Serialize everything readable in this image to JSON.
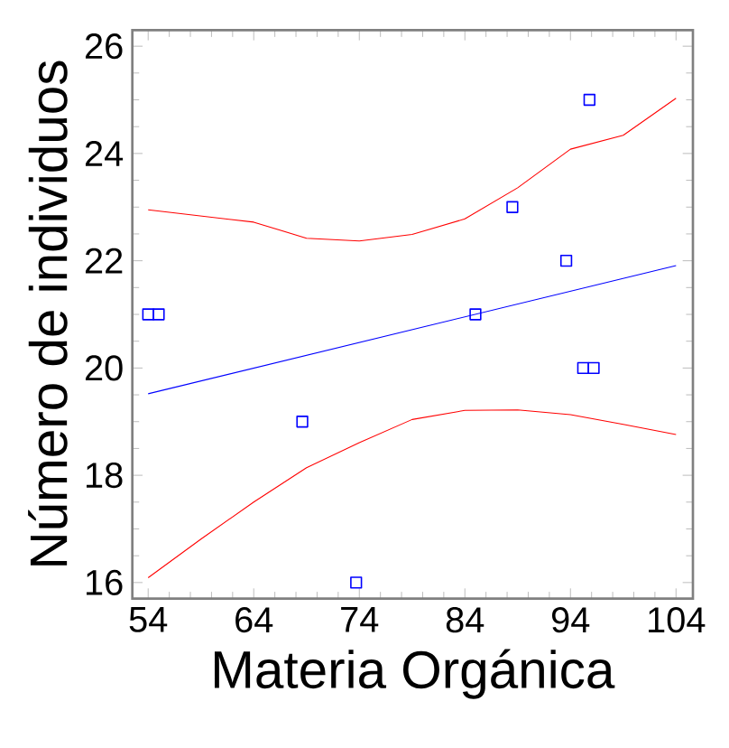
{
  "chart_data": {
    "type": "scatter",
    "xlabel": "Materia Orgánica",
    "ylabel": "Número de individuos",
    "xlim": [
      52.5,
      105.6
    ],
    "ylim": [
      15.7,
      26.3
    ],
    "xticks": [
      54,
      64,
      74,
      84,
      94,
      104
    ],
    "yticks": [
      16,
      18,
      20,
      22,
      24,
      26
    ],
    "series": [
      {
        "color": "#0000ff",
        "marker": "square",
        "x": [
          54,
          55,
          68.6,
          73.7,
          85,
          88.5,
          93.6,
          95.2,
          96.2,
          95.8
        ],
        "values": [
          21,
          21,
          19,
          16,
          21,
          23,
          22,
          20,
          20,
          25
        ]
      },
      {
        "type": "line",
        "color": "#0000ff",
        "marker": "none",
        "x": [
          54,
          104
        ],
        "values": [
          19.52,
          21.91
        ]
      },
      {
        "type": "line",
        "color": "#ff0000",
        "marker": "none",
        "x": [
          54,
          64,
          69,
          74,
          79,
          84,
          89,
          94,
          99,
          104
        ],
        "values": [
          22.95,
          22.72,
          22.42,
          22.37,
          22.49,
          22.78,
          23.36,
          24.08,
          24.34,
          25.03
        ]
      },
      {
        "type": "line",
        "color": "#ff0000",
        "marker": "none",
        "x": [
          54,
          59,
          64,
          69,
          74,
          79,
          84,
          89,
          94,
          99,
          104
        ],
        "values": [
          16.09,
          16.81,
          17.5,
          18.14,
          18.61,
          19.04,
          19.21,
          19.22,
          19.13,
          18.95,
          18.76
        ]
      }
    ]
  }
}
